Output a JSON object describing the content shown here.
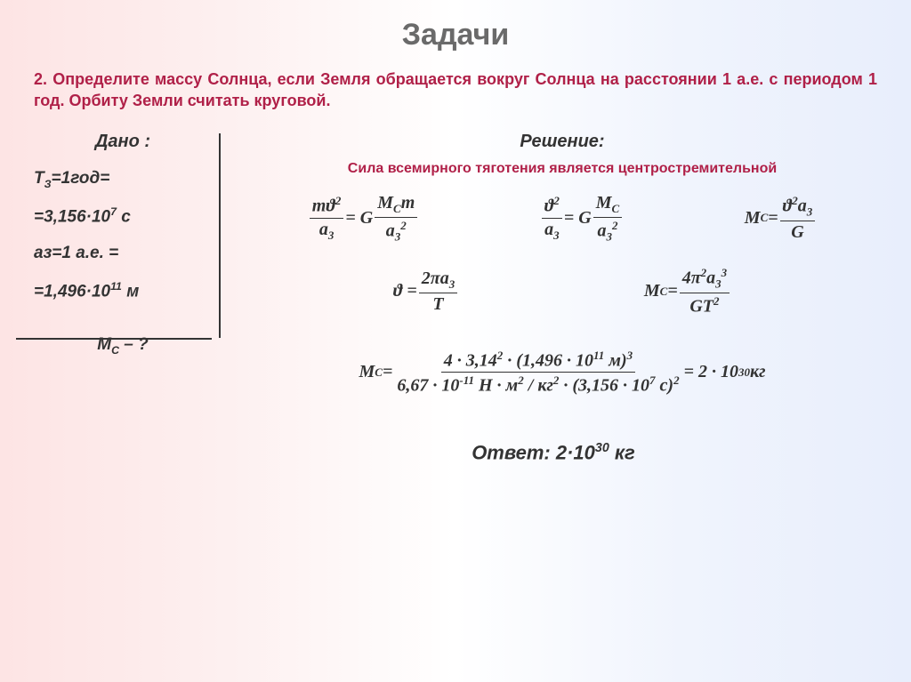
{
  "title": "Задачи",
  "problem": "2. Определите массу Солнца, если Земля обращается вокруг Солнца на расстоянии 1 а.е. с периодом 1 год. Орбиту Земли считать круговой.",
  "given": {
    "label": "Дано :",
    "l1": "T",
    "l1sub": "З",
    "l1rest": "=1год=",
    "l2": "=3,156·10",
    "l2sup": "7",
    "l2rest": " с",
    "l3": "аз=1 а.е. =",
    "l4": "=1,496·10",
    "l4sup": "11",
    "l4rest": " м"
  },
  "find": {
    "sym": "М",
    "sub": "С",
    "rest": " – ?"
  },
  "solution": {
    "label": "Решение:",
    "note": "Сила всемирного тяготения является центростремительной",
    "eq1": {
      "num": "mϑ",
      "numsup": "2",
      "den": "a",
      "densub": "3",
      "eq": " = G",
      "num2": "M",
      "num2sub": "C",
      "num2rest": "m",
      "den2": "a",
      "den2sub": "3",
      "den2sup": "2"
    },
    "eq2": {
      "num": "ϑ",
      "numsup": "2",
      "den": "a",
      "densub": "3",
      "eq": " = G",
      "num2": "M",
      "num2sub": "C",
      "den2": "a",
      "den2sub": "3",
      "den2sup": "2"
    },
    "eq3": {
      "lhs": "M",
      "lhssub": "C",
      "eq": " = ",
      "num": "ϑ",
      "numsup": "2",
      "numrest": "a",
      "numrestsub": "3",
      "den": "G"
    },
    "eq4": {
      "lhs": "ϑ = ",
      "num": "2πa",
      "numsub": "3",
      "den": "T"
    },
    "eq5": {
      "lhs": "M",
      "lhssub": "C",
      "eq": " = ",
      "num": "4π",
      "numsup": "2",
      "numrest": "a",
      "numrestsub": "3",
      "numrestsup": "3",
      "den": "GT",
      "densup": "2"
    },
    "calc": {
      "lhs": "M",
      "lhssub": "C",
      "eq": " = ",
      "num": "4 · 3,14",
      "numsup1": "2",
      "nummid": " · (1,496 · 10",
      "numsup2": "11",
      "numrest": " м)",
      "numsup3": "3",
      "den": "6,67 · 10",
      "densup1": "-11",
      "denmid": " Н · м",
      "densup2": "2",
      "denmid2": " / кг",
      "densup3": "2",
      "denrest": " · (3,156 · 10",
      "densup4": "7",
      "denrest2": " с)",
      "densup5": "2",
      "result": " = 2 · 10",
      "resultsup": "30",
      "resultrest": " кг"
    }
  },
  "answer": {
    "label": "Ответ: ",
    "val": "2·10",
    "sup": "30",
    "rest": " кг"
  }
}
